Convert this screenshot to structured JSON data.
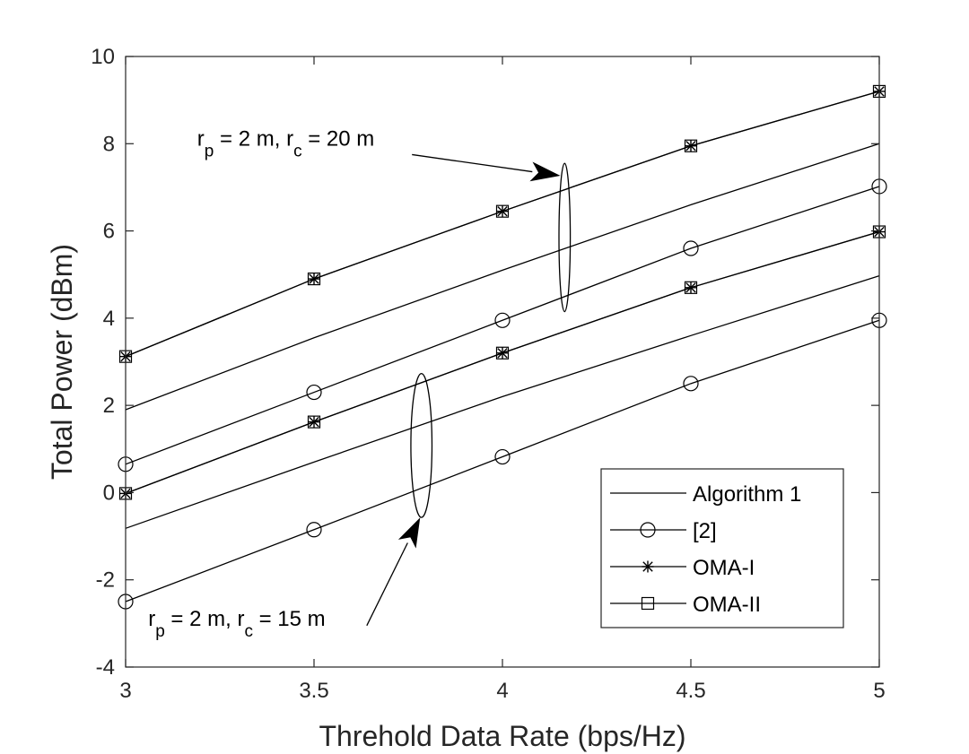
{
  "chart_data": {
    "type": "line",
    "title": "",
    "xlabel": "Threhold Data Rate (bps/Hz)",
    "ylabel": "Total Power (dBm)",
    "xlim": [
      3,
      5
    ],
    "ylim": [
      -4,
      10
    ],
    "xticks": [
      3,
      3.5,
      4,
      4.5,
      5
    ],
    "xtick_labels": [
      "3",
      "3.5",
      "4",
      "4.5",
      "5"
    ],
    "yticks": [
      -4,
      -2,
      0,
      2,
      4,
      6,
      8,
      10
    ],
    "ytick_labels": [
      "-4",
      "-2",
      "0",
      "2",
      "4",
      "6",
      "8",
      "10"
    ],
    "grid": false,
    "legend_position": "bottom-right",
    "x": [
      3,
      3.5,
      4,
      4.5,
      5
    ],
    "legend": [
      {
        "label": "Algorithm 1",
        "marker": "none"
      },
      {
        "label": "[2]",
        "marker": "circle"
      },
      {
        "label": "OMA-I",
        "marker": "star"
      },
      {
        "label": "OMA-II",
        "marker": "square"
      }
    ],
    "series": [
      {
        "name": "Algorithm 1",
        "scenario": "r_p = 2 m, r_c = 20 m",
        "marker": "none",
        "values": [
          1.9,
          3.55,
          5.1,
          6.6,
          8.0
        ]
      },
      {
        "name": "[2]",
        "scenario": "r_p = 2 m, r_c = 20 m",
        "marker": "circle",
        "values": [
          0.65,
          2.3,
          3.95,
          5.6,
          7.02
        ]
      },
      {
        "name": "OMA-I",
        "scenario": "r_p = 2 m, r_c = 20 m",
        "marker": "star",
        "values": [
          3.12,
          4.9,
          6.45,
          7.95,
          9.2
        ]
      },
      {
        "name": "OMA-II",
        "scenario": "r_p = 2 m, r_c = 20 m",
        "marker": "square",
        "values": [
          3.12,
          4.9,
          6.45,
          7.95,
          9.2
        ]
      },
      {
        "name": "Algorithm 1",
        "scenario": "r_p = 2 m, r_c = 15 m",
        "marker": "none",
        "values": [
          -0.82,
          0.7,
          2.2,
          3.6,
          4.97
        ]
      },
      {
        "name": "[2]",
        "scenario": "r_p = 2 m, r_c = 15 m",
        "marker": "circle",
        "values": [
          -2.5,
          -0.85,
          0.82,
          2.5,
          3.95
        ]
      },
      {
        "name": "OMA-I",
        "scenario": "r_p = 2 m, r_c = 15 m",
        "marker": "star",
        "values": [
          -0.02,
          1.62,
          3.2,
          4.7,
          5.98
        ]
      },
      {
        "name": "OMA-II",
        "scenario": "r_p = 2 m, r_c = 15 m",
        "marker": "square",
        "values": [
          -0.02,
          1.62,
          3.2,
          4.7,
          5.98
        ]
      }
    ],
    "annotations": [
      {
        "id": "upper",
        "text_parts": [
          [
            "r",
            "p",
            " = 2 m, r",
            "c",
            " = 20 m"
          ]
        ],
        "prefix": "r",
        "sub1": "p",
        "mid": " = 2 m, r",
        "sub2": "c",
        "suffix": " = 20 m",
        "text_anchor": [
          3.19,
          7.95
        ],
        "arrow_from": [
          3.76,
          7.75
        ],
        "arrow_to": [
          4.15,
          7.27
        ],
        "ellipse_center": [
          4.165,
          5.85
        ],
        "ellipse_rx": 0.015,
        "ellipse_ry": 1.7
      },
      {
        "id": "lower",
        "prefix": "r",
        "sub1": "p",
        "mid": " = 2 m, r",
        "sub2": "c",
        "suffix": " = 15 m",
        "text_anchor": [
          3.06,
          -3.05
        ],
        "arrow_from": [
          3.64,
          -3.05
        ],
        "arrow_to": [
          3.78,
          -0.6
        ],
        "ellipse_center": [
          3.785,
          1.08
        ],
        "ellipse_rx": 0.028,
        "ellipse_ry": 1.65
      }
    ]
  }
}
